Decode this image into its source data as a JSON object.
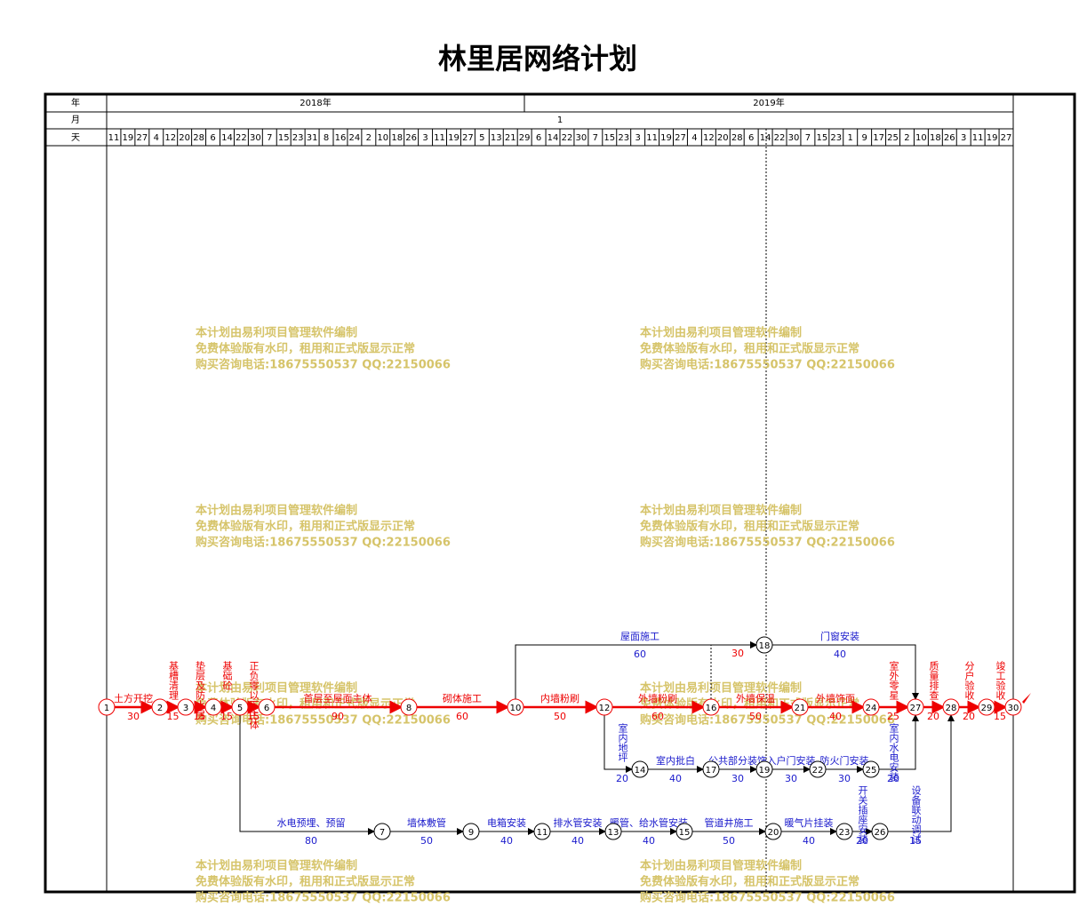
{
  "title": "林里居网络计划",
  "timeline": {
    "year_label": "年",
    "years": [
      "2018年",
      "2019年"
    ],
    "month_label": "月",
    "months": [
      "1"
    ],
    "day_label": "天",
    "days": [
      11,
      19,
      27,
      4,
      12,
      20,
      28,
      6,
      14,
      22,
      30,
      7,
      15,
      23,
      31,
      8,
      16,
      24,
      2,
      10,
      18,
      26,
      3,
      11,
      19,
      27,
      5,
      13,
      21,
      29,
      6,
      14,
      22,
      30,
      7,
      15,
      23,
      3,
      11,
      19,
      27,
      4,
      12,
      20,
      28,
      6,
      14,
      22,
      30,
      7,
      15,
      23,
      1,
      9,
      17,
      25,
      2,
      10,
      18,
      26,
      3,
      11,
      19,
      27
    ]
  },
  "watermark": [
    "本计划由易利项目管理软件编制",
    "免费体验版有水印，租用和正式版显示正常",
    "购买咨询电话:18675550537 QQ:22150066"
  ],
  "nodes": [
    "1",
    "2",
    "3",
    "4",
    "5",
    "6",
    "7",
    "8",
    "9",
    "10",
    "11",
    "12",
    "13",
    "14",
    "15",
    "16",
    "17",
    "18",
    "19",
    "20",
    "21",
    "22",
    "23",
    "24",
    "25",
    "26",
    "27",
    "28",
    "29",
    "30"
  ],
  "activities": [
    {
      "name": "土方开挖",
      "duration": 30
    },
    {
      "name": "基槽清理",
      "duration": 15
    },
    {
      "name": "垫层及防水层",
      "duration": 15
    },
    {
      "name": "基础砼",
      "duration": 15
    },
    {
      "name": "正负零以下主体",
      "duration": 15
    },
    {
      "name": "首层至屋面主体",
      "duration": 90
    },
    {
      "name": "砌体施工",
      "duration": 60
    },
    {
      "name": "内墙粉刷",
      "duration": 50
    },
    {
      "name": "外墙粉刷",
      "duration": 60
    },
    {
      "name": "外墙保温",
      "duration": 50
    },
    {
      "name": "外墙饰面",
      "duration": 40
    },
    {
      "name": "室外零星",
      "duration": 25
    },
    {
      "name": "质量排查",
      "duration": 20
    },
    {
      "name": "分户验收",
      "duration": 20
    },
    {
      "name": "竣工验收",
      "duration": 15
    },
    {
      "name": "屋面施工",
      "duration": 60
    },
    {
      "duration": 30
    },
    {
      "name": "门窗安装",
      "duration": 40
    },
    {
      "name": "室内地坪",
      "duration": 20
    },
    {
      "name": "室内批白",
      "duration": 40
    },
    {
      "name": "公共部分装饰",
      "duration": 30
    },
    {
      "name": "入户门安装",
      "duration": 30
    },
    {
      "name": "防火门安装",
      "duration": 30
    },
    {
      "name": "室内水电安装",
      "duration": 20
    },
    {
      "name": "水电预埋、预留",
      "duration": 80
    },
    {
      "name": "墙体敷管",
      "duration": 50
    },
    {
      "name": "电箱安装",
      "duration": 40
    },
    {
      "name": "排水管安装",
      "duration": 40
    },
    {
      "name": "暖管、给水管安装",
      "duration": 40
    },
    {
      "name": "管道井施工",
      "duration": 50
    },
    {
      "name": "暖气片挂装",
      "duration": 40
    },
    {
      "name": "开关插座安装",
      "duration": 20
    },
    {
      "name": "设备联动调试",
      "duration": 15
    }
  ]
}
